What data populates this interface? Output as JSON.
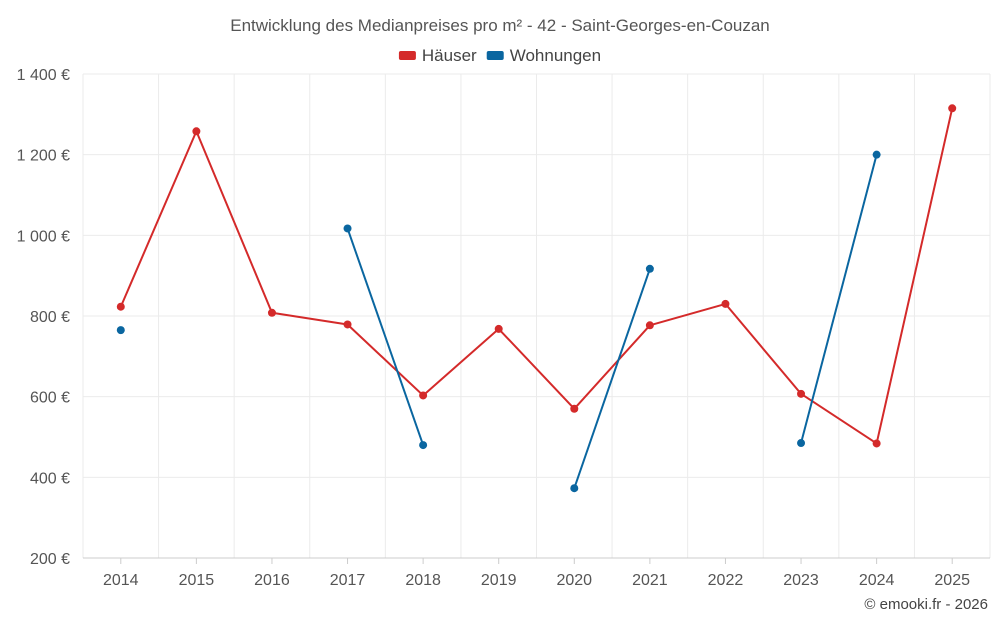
{
  "chart_data": {
    "type": "line",
    "title": "Entwicklung des Medianpreises pro m² - 42 - Saint-Georges-en-Couzan",
    "xlabel": "",
    "ylabel": "",
    "categories": [
      "2014",
      "2015",
      "2016",
      "2017",
      "2018",
      "2019",
      "2020",
      "2021",
      "2022",
      "2023",
      "2024",
      "2025"
    ],
    "ylim": [
      200,
      1400
    ],
    "yticks": [
      200,
      400,
      600,
      800,
      1000,
      1200,
      1400
    ],
    "ytick_labels": [
      "200 €",
      "400 €",
      "600 €",
      "800 €",
      "1 000 €",
      "1 200 €",
      "1 400 €"
    ],
    "grid": true,
    "legend_position": "top-center",
    "series": [
      {
        "name": "Häuser",
        "color": "#d42a2a",
        "values": [
          823,
          1258,
          808,
          779,
          603,
          768,
          570,
          777,
          830,
          607,
          484,
          1315
        ]
      },
      {
        "name": "Wohnungen",
        "color": "#0a66a0",
        "values": [
          765,
          null,
          null,
          1017,
          480,
          null,
          373,
          917,
          null,
          485,
          1200,
          null
        ]
      }
    ]
  },
  "credit": "© emooki.fr - 2026"
}
